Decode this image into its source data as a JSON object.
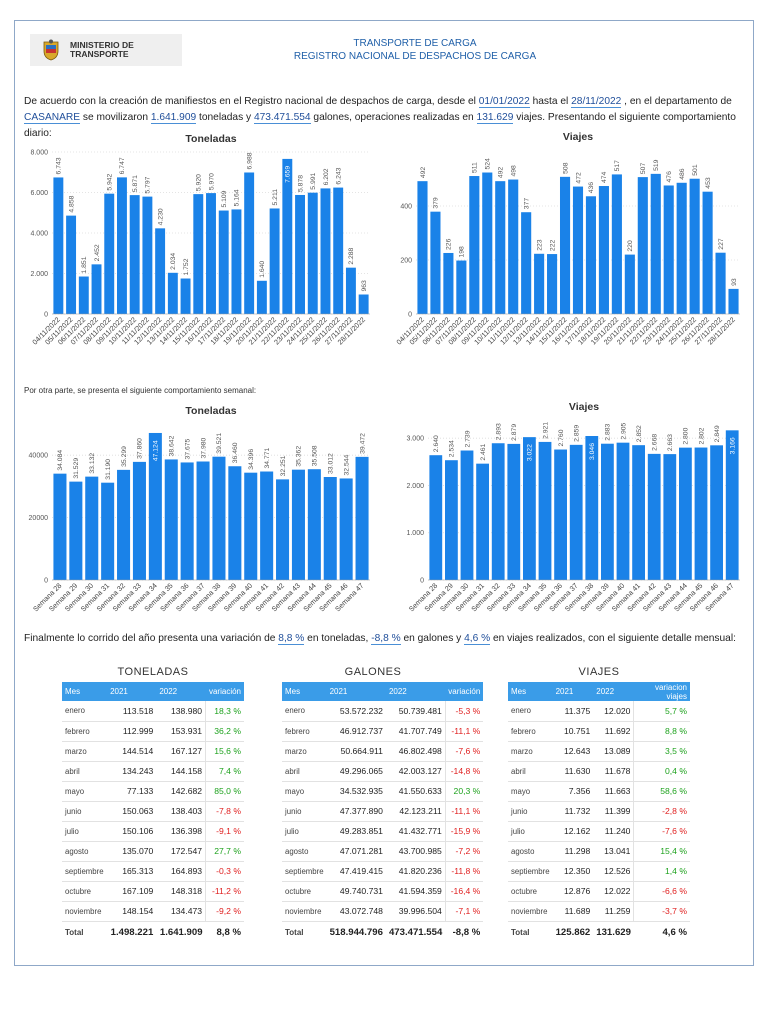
{
  "header": {
    "ministry_line1": "MINISTERIO DE",
    "ministry_line2": "TRANSPORTE",
    "title_line1": "TRANSPORTE DE CARGA",
    "title_line2": "REGISTRO NACIONAL DE DESPACHOS DE CARGA"
  },
  "intro": {
    "t1": "De acuerdo con la creación de manifiestos en el Registro nacional de despachos de carga, desde el ",
    "date_from": "01/01/2022",
    "t2": " hasta el ",
    "date_to": "28/11/2022",
    "t3": " , en el departamento de ",
    "department": "CASANARE",
    "t4": " se movilizaron ",
    "tons": "1.641.909",
    "t5": " toneladas y ",
    "gallons": "473.471.554",
    "t6": " galones, operaciones realizadas en ",
    "trips": "131.629",
    "t7": " viajes. Presentando el siguiente comportamiento diario:"
  },
  "weekly_note": "Por otra parte, se presenta el siguiente comportamiento semanal:",
  "final": {
    "t1": "Finalmente lo corrido del año presenta una variación de ",
    "v_tons": "8,8 %",
    "t2": " en toneladas, ",
    "v_gal": "-8,8 %",
    "t3": " en galones y ",
    "v_trips": "4,6 %",
    "t4": " en viajes realizados, con el siguiente detalle mensual:"
  },
  "colors": {
    "bar": "#1a82e8",
    "header": "#1f5fa8",
    "table_header": "#3a9ce8",
    "pos": "#1ea21e",
    "neg": "#e02020"
  },
  "chart_data": [
    {
      "id": "daily-tons",
      "type": "bar",
      "title": "Toneladas",
      "ylim": [
        0,
        8000
      ],
      "yticks": [
        0,
        2000,
        4000,
        6000,
        8000
      ],
      "ytick_labels": [
        "0",
        "2.000",
        "4.000",
        "6.000",
        "8.000"
      ],
      "categories": [
        "04/11/2022",
        "05/11/2022",
        "06/11/2022",
        "07/11/2022",
        "08/11/2022",
        "09/11/2022",
        "10/11/2022",
        "11/11/2022",
        "12/11/2022",
        "13/11/2022",
        "14/11/2022",
        "15/11/2022",
        "16/11/2022",
        "17/11/2022",
        "18/11/2022",
        "19/11/2022",
        "20/11/2022",
        "21/11/2022",
        "22/11/2022",
        "23/11/2022",
        "24/11/2022",
        "25/11/2022",
        "26/11/2022",
        "27/11/2022",
        "28/11/2022"
      ],
      "values": [
        6743,
        4858,
        1851,
        2452,
        5942,
        6747,
        5871,
        5797,
        4230,
        2034,
        1752,
        5920,
        5970,
        5109,
        5164,
        6988,
        1640,
        5211,
        7659,
        5878,
        5991,
        6202,
        6243,
        2288,
        963
      ],
      "labels": [
        "6.743",
        "4.858",
        "1.851",
        "2.452",
        "5.942",
        "6.747",
        "5.871",
        "5.797",
        "4.230",
        "2.034",
        "1.752",
        "5.920",
        "5.970",
        "5.109",
        "5.164",
        "6.988",
        "1.640",
        "5.211",
        "7.659",
        "5.878",
        "5.991",
        "6.202",
        "6.243",
        "2.288",
        "963"
      ]
    },
    {
      "id": "daily-trips",
      "type": "bar",
      "title": "Viajes",
      "ylim": [
        0,
        600
      ],
      "yticks": [
        0,
        200,
        400
      ],
      "ytick_labels": [
        "0",
        "200",
        "400"
      ],
      "categories": [
        "04/11/2022",
        "05/11/2022",
        "06/11/2022",
        "07/11/2022",
        "08/11/2022",
        "09/11/2022",
        "10/11/2022",
        "11/11/2022",
        "12/11/2022",
        "13/11/2022",
        "14/11/2022",
        "15/11/2022",
        "16/11/2022",
        "17/11/2022",
        "18/11/2022",
        "19/11/2022",
        "20/11/2022",
        "21/11/2022",
        "22/11/2022",
        "23/11/2022",
        "24/11/2022",
        "25/11/2022",
        "26/11/2022",
        "27/11/2022",
        "28/11/2022"
      ],
      "values": [
        492,
        379,
        226,
        198,
        511,
        524,
        492,
        498,
        377,
        223,
        222,
        508,
        472,
        436,
        474,
        517,
        220,
        507,
        519,
        476,
        486,
        501,
        453,
        227,
        93
      ],
      "labels": [
        "492",
        "379",
        "226",
        "198",
        "511",
        "524",
        "492",
        "498",
        "377",
        "223",
        "222",
        "508",
        "472",
        "436",
        "474",
        "517",
        "220",
        "507",
        "519",
        "476",
        "486",
        "501",
        "453",
        "227",
        "93"
      ]
    },
    {
      "id": "weekly-tons",
      "type": "bar",
      "title": "Toneladas",
      "ylim": [
        0,
        50000
      ],
      "yticks": [
        0,
        20000,
        40000
      ],
      "ytick_labels": [
        "0",
        "20000",
        "40000"
      ],
      "categories": [
        "Semana 28",
        "Semana 29",
        "Semana 30",
        "Semana 31",
        "Semana 32",
        "Semana 33",
        "Semana 34",
        "Semana 35",
        "Semana 36",
        "Semana 37",
        "Semana 38",
        "Semana 39",
        "Semana 40",
        "Semana 41",
        "Semana 42",
        "Semana 43",
        "Semana 44",
        "Semana 45",
        "Semana 46",
        "Semana 47"
      ],
      "values": [
        34084,
        31529,
        33132,
        31190,
        35299,
        37860,
        47124,
        38642,
        37675,
        37980,
        39521,
        36460,
        34396,
        34771,
        32251,
        35362,
        35508,
        33012,
        32544,
        39472
      ],
      "labels": [
        "34.084",
        "31.529",
        "33.132",
        "31.190",
        "35.299",
        "37.860",
        "47.124",
        "38.642",
        "37.675",
        "37.980",
        "39.521",
        "36.460",
        "34.396",
        "34.771",
        "32.251",
        "35.362",
        "35.508",
        "33.012",
        "32.544",
        "39.472"
      ]
    },
    {
      "id": "weekly-trips",
      "type": "bar",
      "title": "Viajes",
      "ylim": [
        0,
        3300
      ],
      "yticks": [
        0,
        1000,
        2000,
        3000
      ],
      "ytick_labels": [
        "0",
        "1.000",
        "2.000",
        "3.000"
      ],
      "categories": [
        "Semana 28",
        "Semana 29",
        "Semana 30",
        "Semana 31",
        "Semana 32",
        "Semana 33",
        "Semana 34",
        "Semana 35",
        "Semana 36",
        "Semana 37",
        "Semana 38",
        "Semana 39",
        "Semana 40",
        "Semana 41",
        "Semana 42",
        "Semana 43",
        "Semana 44",
        "Semana 45",
        "Semana 46",
        "Semana 47"
      ],
      "values": [
        2640,
        2534,
        2739,
        2461,
        2893,
        2879,
        3022,
        2921,
        2760,
        2859,
        3046,
        2883,
        2905,
        2852,
        2668,
        2663,
        2800,
        2802,
        2849,
        3166
      ],
      "labels": [
        "2.640",
        "2.534",
        "2.739",
        "2.461",
        "2.893",
        "2.879",
        "3.022",
        "2.921",
        "2.760",
        "2.859",
        "3.046",
        "2.883",
        "2.905",
        "2.852",
        "2.668",
        "2.663",
        "2.800",
        "2.802",
        "2.849",
        "3.166"
      ]
    }
  ],
  "tables": [
    {
      "title": "TONELADAS",
      "headers": [
        "Mes",
        "2021",
        "2022",
        "variación"
      ],
      "rows": [
        [
          "enero",
          "113.518",
          "138.980",
          "18,3 %"
        ],
        [
          "febrero",
          "112.999",
          "153.931",
          "36,2 %"
        ],
        [
          "marzo",
          "144.514",
          "167.127",
          "15,6 %"
        ],
        [
          "abril",
          "134.243",
          "144.158",
          "7,4 %"
        ],
        [
          "mayo",
          "77.133",
          "142.682",
          "85,0 %"
        ],
        [
          "junio",
          "150.063",
          "138.403",
          "-7,8 %"
        ],
        [
          "julio",
          "150.106",
          "136.398",
          "-9,1 %"
        ],
        [
          "agosto",
          "135.070",
          "172.547",
          "27,7 %"
        ],
        [
          "septiembre",
          "165.313",
          "164.893",
          "-0,3 %"
        ],
        [
          "octubre",
          "167.109",
          "148.318",
          "-11,2 %"
        ],
        [
          "noviembre",
          "148.154",
          "134.473",
          "-9,2 %"
        ]
      ],
      "total": [
        "Total",
        "1.498.221",
        "1.641.909",
        "8,8 %"
      ]
    },
    {
      "title": "GALONES",
      "headers": [
        "Mes",
        "2021",
        "2022",
        "variación"
      ],
      "rows": [
        [
          "enero",
          "53.572.232",
          "50.739.481",
          "-5,3 %"
        ],
        [
          "febrero",
          "46.912.737",
          "41.707.749",
          "-11,1 %"
        ],
        [
          "marzo",
          "50.664.911",
          "46.802.498",
          "-7,6 %"
        ],
        [
          "abril",
          "49.296.065",
          "42.003.127",
          "-14,8 %"
        ],
        [
          "mayo",
          "34.532.935",
          "41.550.633",
          "20,3 %"
        ],
        [
          "junio",
          "47.377.890",
          "42.123.211",
          "-11,1 %"
        ],
        [
          "julio",
          "49.283.851",
          "41.432.771",
          "-15,9 %"
        ],
        [
          "agosto",
          "47.071.281",
          "43.700.985",
          "-7,2 %"
        ],
        [
          "septiembre",
          "47.419.415",
          "41.820.236",
          "-11,8 %"
        ],
        [
          "octubre",
          "49.740.731",
          "41.594.359",
          "-16,4 %"
        ],
        [
          "noviembre",
          "43.072.748",
          "39.996.504",
          "-7,1 %"
        ]
      ],
      "total": [
        "Total",
        "518.944.796",
        "473.471.554",
        "-8,8 %"
      ]
    },
    {
      "title": "VIAJES",
      "headers": [
        "Mes",
        "2021",
        "2022",
        "variacion viajes"
      ],
      "rows": [
        [
          "enero",
          "11.375",
          "12.020",
          "5,7 %"
        ],
        [
          "febrero",
          "10.751",
          "11.692",
          "8,8 %"
        ],
        [
          "marzo",
          "12.643",
          "13.089",
          "3,5 %"
        ],
        [
          "abril",
          "11.630",
          "11.678",
          "0,4 %"
        ],
        [
          "mayo",
          "7.356",
          "11.663",
          "58,6 %"
        ],
        [
          "junio",
          "11.732",
          "11.399",
          "-2,8 %"
        ],
        [
          "julio",
          "12.162",
          "11.240",
          "-7,6 %"
        ],
        [
          "agosto",
          "11.298",
          "13.041",
          "15,4 %"
        ],
        [
          "septiembre",
          "12.350",
          "12.526",
          "1,4 %"
        ],
        [
          "octubre",
          "12.876",
          "12.022",
          "-6,6 %"
        ],
        [
          "noviembre",
          "11.689",
          "11.259",
          "-3,7 %"
        ]
      ],
      "total": [
        "Total",
        "125.862",
        "131.629",
        "4,6 %"
      ]
    }
  ]
}
